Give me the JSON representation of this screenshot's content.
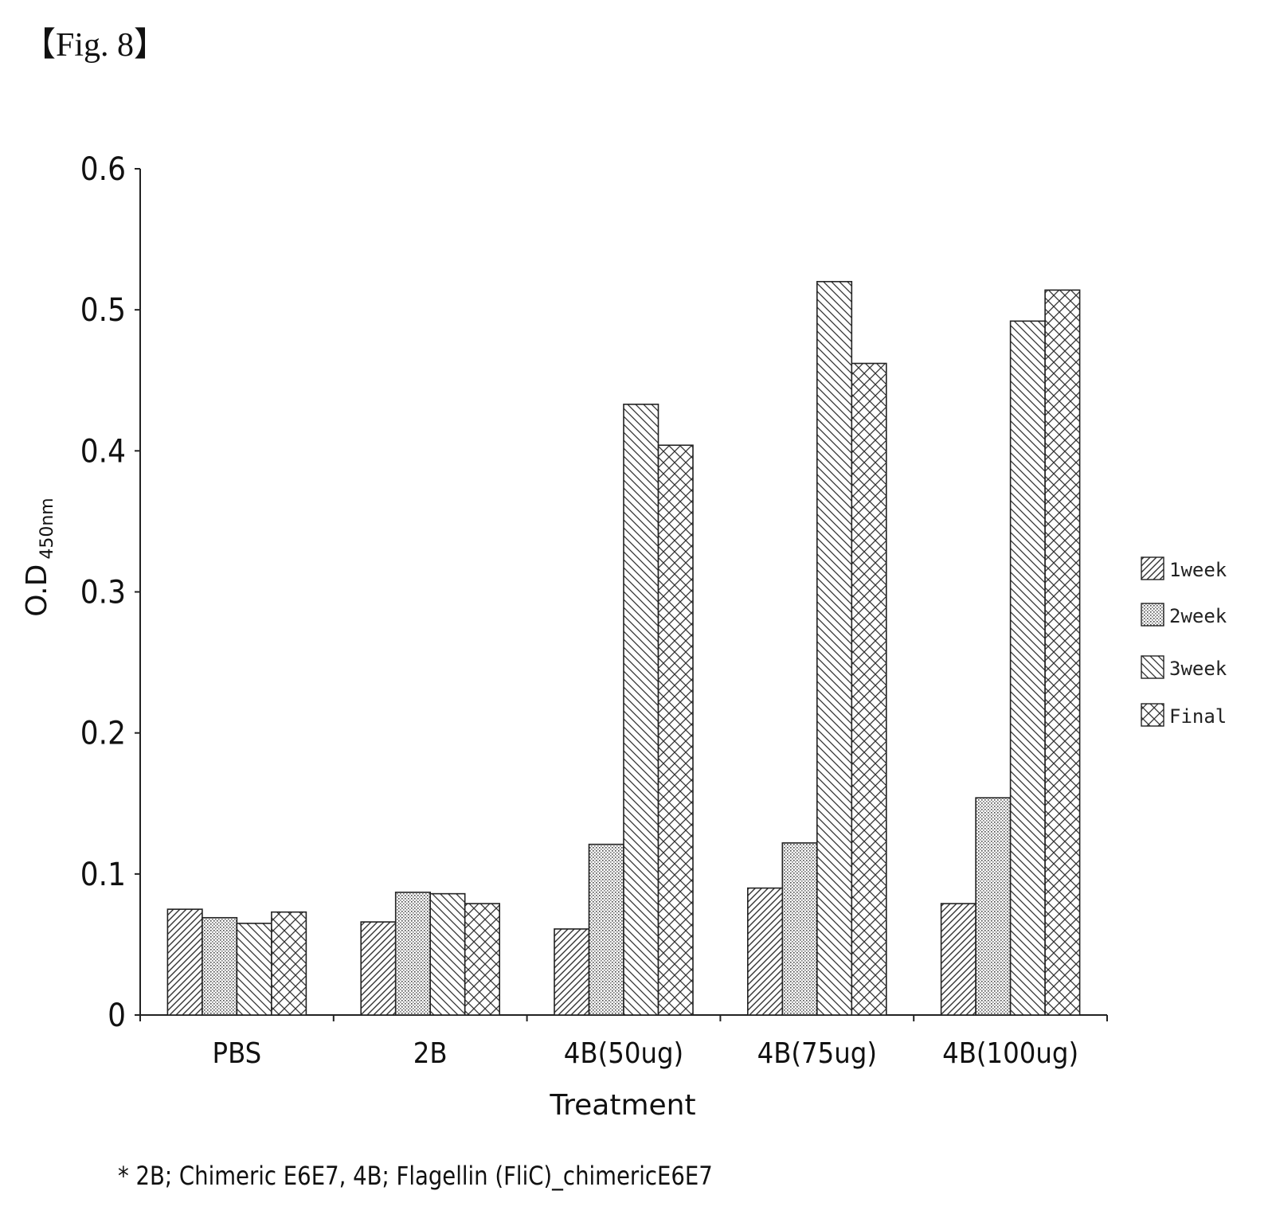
{
  "figure_label": "【Fig. 8】",
  "footnote": "* 2B; Chimeric E6E7, 4B; Flagellin (FliC)_chimericE6E7",
  "chart_data": {
    "type": "bar",
    "title": "",
    "xlabel": "Treatment",
    "ylabel": "O.D",
    "ylabel_subscript": "450nm",
    "ylim": [
      0,
      0.6
    ],
    "yticks": [
      "0",
      "0.1",
      "0.2",
      "0.3",
      "0.4",
      "0.5",
      "0.6"
    ],
    "categories": [
      "PBS",
      "2B",
      "4B(50ug)",
      "4B(75ug)",
      "4B(100ug)"
    ],
    "series": [
      {
        "name": "1week",
        "pattern": "diag-right",
        "values": [
          0.075,
          0.066,
          0.061,
          0.09,
          0.079
        ]
      },
      {
        "name": "2week",
        "pattern": "dots",
        "values": [
          0.069,
          0.087,
          0.121,
          0.122,
          0.154
        ]
      },
      {
        "name": "3week",
        "pattern": "diag-left",
        "values": [
          0.065,
          0.086,
          0.433,
          0.52,
          0.492
        ]
      },
      {
        "name": "Final",
        "pattern": "crosshatch",
        "values": [
          0.073,
          0.079,
          0.404,
          0.462,
          0.514
        ]
      }
    ],
    "legend_position": "right",
    "grid": false,
    "colors": {
      "bar_stroke": "#222222",
      "background": "#ffffff"
    }
  }
}
